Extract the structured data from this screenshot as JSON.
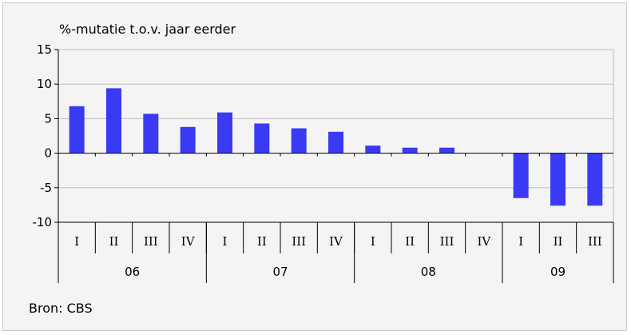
{
  "chart_data": {
    "type": "bar",
    "title": "%-mutatie t.o.v. jaar eerder",
    "source": "Bron: CBS",
    "categories": [
      "I",
      "II",
      "III",
      "IV",
      "I",
      "II",
      "III",
      "IV",
      "I",
      "II",
      "III",
      "IV",
      "I",
      "II",
      "III"
    ],
    "years": [
      {
        "label": "06",
        "span": 4
      },
      {
        "label": "07",
        "span": 4
      },
      {
        "label": "08",
        "span": 4
      },
      {
        "label": "09",
        "span": 3
      }
    ],
    "values": [
      6.8,
      9.4,
      5.7,
      3.8,
      5.9,
      4.3,
      3.6,
      3.1,
      1.1,
      0.8,
      0.8,
      0,
      -6.5,
      -7.6,
      -7.6
    ],
    "ylim": [
      -10,
      15
    ],
    "yticks": [
      "15",
      "10",
      "5",
      "0",
      "-5",
      "-10"
    ],
    "grid": true,
    "colors": {
      "bar": "#3a3af5",
      "grid": "#c0c0c0",
      "background": "#f4f4f4"
    }
  }
}
